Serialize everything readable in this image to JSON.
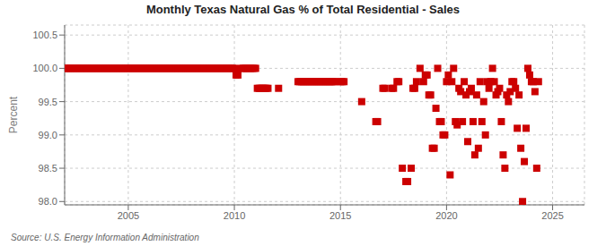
{
  "chart_data": {
    "type": "scatter",
    "title": "Monthly Texas Natural Gas % of Total Residential - Sales",
    "ylabel": "Percent",
    "annotations": [
      "Source: U.S. Energy Information Administration"
    ],
    "color": "#cc0000",
    "marker": "square",
    "grid": true,
    "xlim": [
      2002.0,
      2026.5
    ],
    "ylim": [
      97.95,
      100.65
    ],
    "xticks": [
      2005,
      2010,
      2015,
      2020,
      2025
    ],
    "yticks": [
      {
        "value": 98.0,
        "label": "98.0"
      },
      98.5,
      {
        "value": 99.0,
        "label": "99.0"
      },
      99.5,
      {
        "value": 100.0,
        "label": "100.0"
      },
      100.5
    ],
    "x": [
      2002.0,
      2002.083,
      2002.167,
      2002.25,
      2002.333,
      2002.417,
      2002.5,
      2002.583,
      2002.667,
      2002.75,
      2002.833,
      2002.917,
      2003.0,
      2003.083,
      2003.167,
      2003.25,
      2003.333,
      2003.417,
      2003.5,
      2003.583,
      2003.667,
      2003.75,
      2003.833,
      2003.917,
      2004.0,
      2004.083,
      2004.167,
      2004.25,
      2004.333,
      2004.417,
      2004.5,
      2004.583,
      2004.667,
      2004.75,
      2004.833,
      2004.917,
      2005.0,
      2005.083,
      2005.167,
      2005.25,
      2005.333,
      2005.417,
      2005.5,
      2005.583,
      2005.667,
      2005.75,
      2005.833,
      2005.917,
      2006.0,
      2006.083,
      2006.167,
      2006.25,
      2006.333,
      2006.417,
      2006.5,
      2006.583,
      2006.667,
      2006.75,
      2006.833,
      2006.917,
      2007.0,
      2007.083,
      2007.167,
      2007.25,
      2007.333,
      2007.417,
      2007.5,
      2007.583,
      2007.667,
      2007.75,
      2007.833,
      2007.917,
      2008.0,
      2008.083,
      2008.167,
      2008.25,
      2008.333,
      2008.417,
      2008.5,
      2008.583,
      2008.667,
      2008.75,
      2008.833,
      2008.917,
      2009.0,
      2009.083,
      2009.167,
      2009.25,
      2009.333,
      2009.417,
      2009.5,
      2009.583,
      2009.667,
      2009.75,
      2009.833,
      2009.917,
      2010.0,
      2010.083,
      2010.167,
      2010.333,
      2010.417,
      2010.5,
      2010.583,
      2010.667,
      2010.75,
      2010.833,
      2010.917,
      2011.0,
      2011.083,
      2011.167,
      2011.25,
      2011.333,
      2011.417,
      2011.5,
      2011.583,
      2012.083,
      2013.0,
      2013.083,
      2013.167,
      2013.25,
      2013.333,
      2013.417,
      2013.5,
      2013.583,
      2013.667,
      2013.75,
      2013.833,
      2013.917,
      2014.0,
      2014.083,
      2014.167,
      2014.25,
      2014.333,
      2014.417,
      2014.5,
      2014.583,
      2014.667,
      2014.75,
      2015.0,
      2015.083,
      2015.167,
      2016.0,
      2016.667,
      2016.75,
      2017.0,
      2017.083,
      2017.417,
      2017.5,
      2017.667,
      2017.75,
      2017.917,
      2018.083,
      2018.167,
      2018.333,
      2018.417,
      2018.5,
      2018.583,
      2018.75,
      2018.917,
      2019.0,
      2019.083,
      2019.167,
      2019.25,
      2019.333,
      2019.417,
      2019.5,
      2019.583,
      2019.667,
      2019.75,
      2019.833,
      2019.917,
      2020.0,
      2020.083,
      2020.167,
      2020.25,
      2020.333,
      2020.417,
      2020.5,
      2020.583,
      2020.667,
      2020.75,
      2020.833,
      2020.917,
      2021.0,
      2021.083,
      2021.167,
      2021.25,
      2021.333,
      2021.417,
      2021.5,
      2021.583,
      2021.667,
      2021.75,
      2021.833,
      2021.917,
      2022.0,
      2022.083,
      2022.167,
      2022.25,
      2022.333,
      2022.417,
      2022.5,
      2022.583,
      2022.667,
      2022.75,
      2022.833,
      2022.917,
      2023.0,
      2023.083,
      2023.167,
      2023.25,
      2023.333,
      2023.417,
      2023.5,
      2023.583,
      2023.667,
      2023.75,
      2023.833,
      2023.917,
      2024.0,
      2024.083,
      2024.167,
      2024.25,
      2024.333
    ],
    "values": [
      100.0,
      100.0,
      100.0,
      100.0,
      100.0,
      100.0,
      100.0,
      100.0,
      100.0,
      100.0,
      100.0,
      100.0,
      100.0,
      100.0,
      100.0,
      100.0,
      100.0,
      100.0,
      100.0,
      100.0,
      100.0,
      100.0,
      100.0,
      100.0,
      100.0,
      100.0,
      100.0,
      100.0,
      100.0,
      100.0,
      100.0,
      100.0,
      100.0,
      100.0,
      100.0,
      100.0,
      100.0,
      100.0,
      100.0,
      100.0,
      100.0,
      100.0,
      100.0,
      100.0,
      100.0,
      100.0,
      100.0,
      100.0,
      100.0,
      100.0,
      100.0,
      100.0,
      100.0,
      100.0,
      100.0,
      100.0,
      100.0,
      100.0,
      100.0,
      100.0,
      100.0,
      100.0,
      100.0,
      100.0,
      100.0,
      100.0,
      100.0,
      100.0,
      100.0,
      100.0,
      100.0,
      100.0,
      100.0,
      100.0,
      100.0,
      100.0,
      100.0,
      100.0,
      100.0,
      100.0,
      100.0,
      100.0,
      100.0,
      100.0,
      100.0,
      100.0,
      100.0,
      100.0,
      100.0,
      100.0,
      100.0,
      100.0,
      100.0,
      100.0,
      100.0,
      100.0,
      100.0,
      99.9,
      99.9,
      100.0,
      100.0,
      100.0,
      100.0,
      100.0,
      100.0,
      100.0,
      100.0,
      100.0,
      99.7,
      99.7,
      99.7,
      99.7,
      99.7,
      99.7,
      99.7,
      99.7,
      99.8,
      99.8,
      99.8,
      99.8,
      99.8,
      99.8,
      99.8,
      99.8,
      99.8,
      99.8,
      99.8,
      99.8,
      99.8,
      99.8,
      99.8,
      99.8,
      99.8,
      99.8,
      99.8,
      99.8,
      99.8,
      99.8,
      99.8,
      99.8,
      99.8,
      99.5,
      99.2,
      99.2,
      99.7,
      99.7,
      99.7,
      99.7,
      99.8,
      99.8,
      98.5,
      98.3,
      98.3,
      98.5,
      99.7,
      99.7,
      99.8,
      100.0,
      99.8,
      99.9,
      99.9,
      99.6,
      99.6,
      98.8,
      98.8,
      99.4,
      100.0,
      99.2,
      99.2,
      99.0,
      99.0,
      99.8,
      99.9,
      98.4,
      99.8,
      100.0,
      99.2,
      99.15,
      99.7,
      99.65,
      99.2,
      99.8,
      99.6,
      98.9,
      99.65,
      99.7,
      99.2,
      98.7,
      99.6,
      98.8,
      99.8,
      99.2,
      99.5,
      99.0,
      99.8,
      99.7,
      99.8,
      100.0,
      99.8,
      99.6,
      99.65,
      99.7,
      99.2,
      98.7,
      98.5,
      99.6,
      99.5,
      99.65,
      99.8,
      99.8,
      99.7,
      99.1,
      99.6,
      98.8,
      98.0,
      98.6,
      99.1,
      100.0,
      99.9,
      99.8,
      99.8,
      99.65,
      98.5,
      99.8
    ]
  }
}
